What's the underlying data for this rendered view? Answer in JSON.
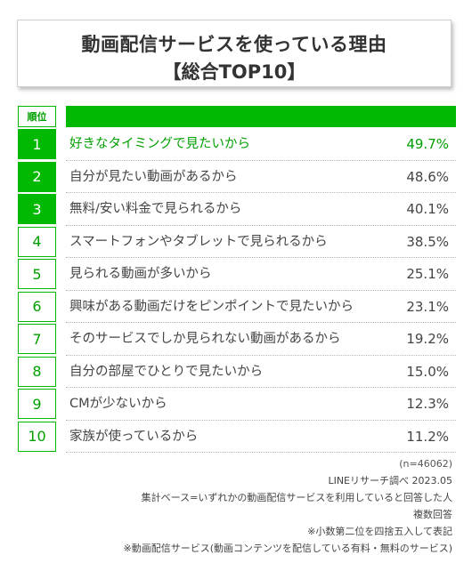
{
  "title": {
    "line1": "動画配信サービスを使っている理由",
    "line2": "【総合TOP10】"
  },
  "header": {
    "rank_label": "順位"
  },
  "colors": {
    "accent": "#00b900",
    "text": "#444444",
    "border": "#cfcfcf"
  },
  "chart_data": {
    "type": "table",
    "title": "動画配信サービスを使っている理由【総合TOP10】",
    "unit": "%",
    "rows": [
      {
        "rank": "1",
        "label": "好きなタイミングで見たいから",
        "value": "49.7%"
      },
      {
        "rank": "2",
        "label": "自分が見たい動画があるから",
        "value": "48.6%"
      },
      {
        "rank": "3",
        "label": "無料/安い料金で見られるから",
        "value": "40.1%"
      },
      {
        "rank": "4",
        "label": "スマートフォンやタブレットで見られるから",
        "value": "38.5%"
      },
      {
        "rank": "5",
        "label": "見られる動画が多いから",
        "value": "25.1%"
      },
      {
        "rank": "6",
        "label": "興味がある動画だけをピンポイントで見たいから",
        "value": "23.1%"
      },
      {
        "rank": "7",
        "label": "そのサービスでしか見られない動画があるから",
        "value": "19.2%"
      },
      {
        "rank": "8",
        "label": "自分の部屋でひとりで見たいから",
        "value": "15.0%"
      },
      {
        "rank": "9",
        "label": "CMが少ないから",
        "value": "12.3%"
      },
      {
        "rank": "10",
        "label": "家族が使っているから",
        "value": "11.2%"
      }
    ]
  },
  "notes": {
    "sample": "(n=46062)",
    "source": "LINEリサーチ調べ 2023.05",
    "base": "集計ベース=いずれかの動画配信サービスを利用していると回答した人",
    "multi": "複数回答",
    "rounding": "※小数第二位を四捨五入して表記",
    "definition": "※動画配信サービス(動画コンテンツを配信している有料・無料のサービス)"
  }
}
